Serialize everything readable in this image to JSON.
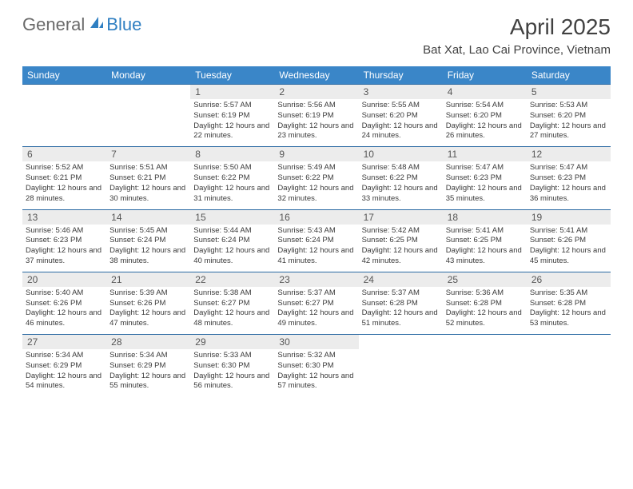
{
  "logo": {
    "text1": "General",
    "text2": "Blue"
  },
  "title": "April 2025",
  "location": "Bat Xat, Lao Cai Province, Vietnam",
  "colors": {
    "header_bg": "#3a86c8",
    "header_text": "#ffffff",
    "daynum_bg": "#ececec",
    "daynum_text": "#565656",
    "divider": "#2b6aa3",
    "body_text": "#3a3a3a",
    "title_text": "#414141",
    "logo_gray": "#6a6a6a",
    "logo_blue": "#2f7fc2"
  },
  "weekdays": [
    "Sunday",
    "Monday",
    "Tuesday",
    "Wednesday",
    "Thursday",
    "Friday",
    "Saturday"
  ],
  "weeks": [
    [
      null,
      null,
      {
        "n": "1",
        "sr": "5:57 AM",
        "ss": "6:19 PM",
        "dl": "12 hours and 22 minutes."
      },
      {
        "n": "2",
        "sr": "5:56 AM",
        "ss": "6:19 PM",
        "dl": "12 hours and 23 minutes."
      },
      {
        "n": "3",
        "sr": "5:55 AM",
        "ss": "6:20 PM",
        "dl": "12 hours and 24 minutes."
      },
      {
        "n": "4",
        "sr": "5:54 AM",
        "ss": "6:20 PM",
        "dl": "12 hours and 26 minutes."
      },
      {
        "n": "5",
        "sr": "5:53 AM",
        "ss": "6:20 PM",
        "dl": "12 hours and 27 minutes."
      }
    ],
    [
      {
        "n": "6",
        "sr": "5:52 AM",
        "ss": "6:21 PM",
        "dl": "12 hours and 28 minutes."
      },
      {
        "n": "7",
        "sr": "5:51 AM",
        "ss": "6:21 PM",
        "dl": "12 hours and 30 minutes."
      },
      {
        "n": "8",
        "sr": "5:50 AM",
        "ss": "6:22 PM",
        "dl": "12 hours and 31 minutes."
      },
      {
        "n": "9",
        "sr": "5:49 AM",
        "ss": "6:22 PM",
        "dl": "12 hours and 32 minutes."
      },
      {
        "n": "10",
        "sr": "5:48 AM",
        "ss": "6:22 PM",
        "dl": "12 hours and 33 minutes."
      },
      {
        "n": "11",
        "sr": "5:47 AM",
        "ss": "6:23 PM",
        "dl": "12 hours and 35 minutes."
      },
      {
        "n": "12",
        "sr": "5:47 AM",
        "ss": "6:23 PM",
        "dl": "12 hours and 36 minutes."
      }
    ],
    [
      {
        "n": "13",
        "sr": "5:46 AM",
        "ss": "6:23 PM",
        "dl": "12 hours and 37 minutes."
      },
      {
        "n": "14",
        "sr": "5:45 AM",
        "ss": "6:24 PM",
        "dl": "12 hours and 38 minutes."
      },
      {
        "n": "15",
        "sr": "5:44 AM",
        "ss": "6:24 PM",
        "dl": "12 hours and 40 minutes."
      },
      {
        "n": "16",
        "sr": "5:43 AM",
        "ss": "6:24 PM",
        "dl": "12 hours and 41 minutes."
      },
      {
        "n": "17",
        "sr": "5:42 AM",
        "ss": "6:25 PM",
        "dl": "12 hours and 42 minutes."
      },
      {
        "n": "18",
        "sr": "5:41 AM",
        "ss": "6:25 PM",
        "dl": "12 hours and 43 minutes."
      },
      {
        "n": "19",
        "sr": "5:41 AM",
        "ss": "6:26 PM",
        "dl": "12 hours and 45 minutes."
      }
    ],
    [
      {
        "n": "20",
        "sr": "5:40 AM",
        "ss": "6:26 PM",
        "dl": "12 hours and 46 minutes."
      },
      {
        "n": "21",
        "sr": "5:39 AM",
        "ss": "6:26 PM",
        "dl": "12 hours and 47 minutes."
      },
      {
        "n": "22",
        "sr": "5:38 AM",
        "ss": "6:27 PM",
        "dl": "12 hours and 48 minutes."
      },
      {
        "n": "23",
        "sr": "5:37 AM",
        "ss": "6:27 PM",
        "dl": "12 hours and 49 minutes."
      },
      {
        "n": "24",
        "sr": "5:37 AM",
        "ss": "6:28 PM",
        "dl": "12 hours and 51 minutes."
      },
      {
        "n": "25",
        "sr": "5:36 AM",
        "ss": "6:28 PM",
        "dl": "12 hours and 52 minutes."
      },
      {
        "n": "26",
        "sr": "5:35 AM",
        "ss": "6:28 PM",
        "dl": "12 hours and 53 minutes."
      }
    ],
    [
      {
        "n": "27",
        "sr": "5:34 AM",
        "ss": "6:29 PM",
        "dl": "12 hours and 54 minutes."
      },
      {
        "n": "28",
        "sr": "5:34 AM",
        "ss": "6:29 PM",
        "dl": "12 hours and 55 minutes."
      },
      {
        "n": "29",
        "sr": "5:33 AM",
        "ss": "6:30 PM",
        "dl": "12 hours and 56 minutes."
      },
      {
        "n": "30",
        "sr": "5:32 AM",
        "ss": "6:30 PM",
        "dl": "12 hours and 57 minutes."
      },
      null,
      null,
      null
    ]
  ],
  "labels": {
    "sunrise": "Sunrise:",
    "sunset": "Sunset:",
    "daylight": "Daylight:"
  }
}
